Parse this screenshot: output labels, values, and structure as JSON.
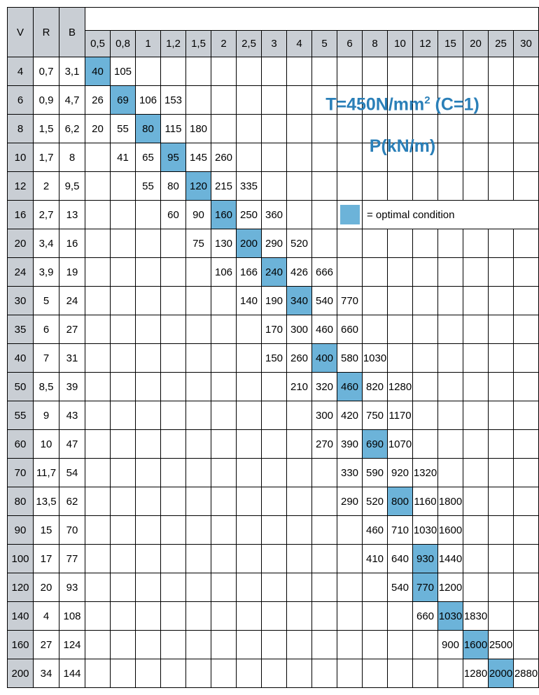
{
  "colors": {
    "header_bg": "#c9ced4",
    "optimal_bg": "#6cb3d9",
    "formula_text": "#2a7fb8",
    "border": "#000000",
    "background": "#ffffff"
  },
  "formula": {
    "line1_prefix": "T=450N/mm",
    "line1_sup": "2",
    "line1_suffix": " (C=1)",
    "line2": "P(kN/m)"
  },
  "legend": "= optimal condition",
  "headers": {
    "col1": "V",
    "col2": "R",
    "col3": "B",
    "data_cols": [
      "0,5",
      "0,8",
      "1",
      "1,2",
      "1,5",
      "2",
      "2,5",
      "3",
      "4",
      "5",
      "6",
      "8",
      "10",
      "12",
      "15",
      "20",
      "25",
      "30"
    ]
  },
  "rows": [
    {
      "V": "4",
      "R": "0,7",
      "B": "3,1",
      "cells": [
        {
          "v": "40",
          "o": 1
        },
        {
          "v": "105"
        },
        {},
        {},
        {},
        {},
        {},
        {},
        {},
        {},
        {},
        {},
        {},
        {},
        {},
        {},
        {},
        {}
      ]
    },
    {
      "V": "6",
      "R": "0,9",
      "B": "4,7",
      "cells": [
        {
          "v": "26"
        },
        {
          "v": "69",
          "o": 1
        },
        {
          "v": "106"
        },
        {
          "v": "153"
        },
        {},
        {},
        {},
        {},
        {},
        {},
        {},
        {},
        {},
        {},
        {},
        {},
        {},
        {}
      ]
    },
    {
      "V": "8",
      "R": "1,5",
      "B": "6,2",
      "cells": [
        {
          "v": "20"
        },
        {
          "v": "55"
        },
        {
          "v": "80",
          "o": 1
        },
        {
          "v": "115"
        },
        {
          "v": "180"
        },
        {},
        {},
        {},
        {},
        {},
        {},
        {},
        {},
        {},
        {},
        {},
        {},
        {}
      ]
    },
    {
      "V": "10",
      "R": "1,7",
      "B": "8",
      "cells": [
        {},
        {
          "v": "41"
        },
        {
          "v": "65"
        },
        {
          "v": "95",
          "o": 1
        },
        {
          "v": "145"
        },
        {
          "v": "260"
        },
        {},
        {},
        {},
        {},
        {},
        {},
        {},
        {},
        {},
        {},
        {},
        {}
      ]
    },
    {
      "V": "12",
      "R": "2",
      "B": "9,5",
      "cells": [
        {},
        {},
        {
          "v": "55"
        },
        {
          "v": "80"
        },
        {
          "v": "120",
          "o": 1
        },
        {
          "v": "215"
        },
        {
          "v": "335"
        },
        {},
        {},
        {},
        {},
        {},
        {},
        {},
        {},
        {},
        {},
        {}
      ]
    },
    {
      "V": "16",
      "R": "2,7",
      "B": "13",
      "cells": [
        {},
        {},
        {},
        {
          "v": "60"
        },
        {
          "v": "90"
        },
        {
          "v": "160",
          "o": 1
        },
        {
          "v": "250"
        },
        {
          "v": "360"
        },
        {},
        {},
        {},
        {},
        {},
        {},
        {},
        {},
        {},
        {}
      ]
    },
    {
      "V": "20",
      "R": "3,4",
      "B": "16",
      "cells": [
        {},
        {},
        {},
        {},
        {
          "v": "75"
        },
        {
          "v": "130"
        },
        {
          "v": "200",
          "o": 1
        },
        {
          "v": "290"
        },
        {
          "v": "520"
        },
        {},
        {},
        {},
        {},
        {},
        {},
        {},
        {},
        {}
      ]
    },
    {
      "V": "24",
      "R": "3,9",
      "B": "19",
      "cells": [
        {},
        {},
        {},
        {},
        {},
        {
          "v": "106"
        },
        {
          "v": "166"
        },
        {
          "v": "240",
          "o": 1
        },
        {
          "v": "426"
        },
        {
          "v": "666"
        },
        {},
        {},
        {},
        {},
        {},
        {},
        {},
        {}
      ]
    },
    {
      "V": "30",
      "R": "5",
      "B": "24",
      "cells": [
        {},
        {},
        {},
        {},
        {},
        {},
        {
          "v": "140"
        },
        {
          "v": "190"
        },
        {
          "v": "340",
          "o": 1
        },
        {
          "v": "540"
        },
        {
          "v": "770"
        },
        {},
        {},
        {},
        {},
        {},
        {},
        {}
      ]
    },
    {
      "V": "35",
      "R": "6",
      "B": "27",
      "cells": [
        {},
        {},
        {},
        {},
        {},
        {},
        {},
        {
          "v": "170"
        },
        {
          "v": "300"
        },
        {
          "v": "460"
        },
        {
          "v": "660"
        },
        {},
        {},
        {},
        {},
        {},
        {},
        {}
      ]
    },
    {
      "V": "40",
      "R": "7",
      "B": "31",
      "cells": [
        {},
        {},
        {},
        {},
        {},
        {},
        {},
        {
          "v": "150"
        },
        {
          "v": "260"
        },
        {
          "v": "400",
          "o": 1
        },
        {
          "v": "580"
        },
        {
          "v": "1030"
        },
        {},
        {},
        {},
        {},
        {},
        {}
      ]
    },
    {
      "V": "50",
      "R": "8,5",
      "B": "39",
      "cells": [
        {},
        {},
        {},
        {},
        {},
        {},
        {},
        {},
        {
          "v": "210"
        },
        {
          "v": "320"
        },
        {
          "v": "460",
          "o": 1
        },
        {
          "v": "820"
        },
        {
          "v": "1280"
        },
        {},
        {},
        {},
        {},
        {}
      ]
    },
    {
      "V": "55",
      "R": "9",
      "B": "43",
      "cells": [
        {},
        {},
        {},
        {},
        {},
        {},
        {},
        {},
        {},
        {
          "v": "300"
        },
        {
          "v": "420"
        },
        {
          "v": "750"
        },
        {
          "v": "1170"
        },
        {},
        {},
        {},
        {},
        {}
      ]
    },
    {
      "V": "60",
      "R": "10",
      "B": "47",
      "cells": [
        {},
        {},
        {},
        {},
        {},
        {},
        {},
        {},
        {},
        {
          "v": "270"
        },
        {
          "v": "390"
        },
        {
          "v": "690",
          "o": 1
        },
        {
          "v": "1070"
        },
        {},
        {},
        {},
        {},
        {}
      ]
    },
    {
      "V": "70",
      "R": "11,7",
      "B": "54",
      "cells": [
        {},
        {},
        {},
        {},
        {},
        {},
        {},
        {},
        {},
        {},
        {
          "v": "330"
        },
        {
          "v": "590"
        },
        {
          "v": "920"
        },
        {
          "v": "1320"
        },
        {},
        {},
        {},
        {}
      ]
    },
    {
      "V": "80",
      "R": "13,5",
      "B": "62",
      "cells": [
        {},
        {},
        {},
        {},
        {},
        {},
        {},
        {},
        {},
        {},
        {
          "v": "290"
        },
        {
          "v": "520"
        },
        {
          "v": "800",
          "o": 1
        },
        {
          "v": "1160"
        },
        {
          "v": "1800"
        },
        {},
        {},
        {}
      ]
    },
    {
      "V": "90",
      "R": "15",
      "B": "70",
      "cells": [
        {},
        {},
        {},
        {},
        {},
        {},
        {},
        {},
        {},
        {},
        {},
        {
          "v": "460"
        },
        {
          "v": "710"
        },
        {
          "v": "1030"
        },
        {
          "v": "1600"
        },
        {},
        {},
        {}
      ]
    },
    {
      "V": "100",
      "R": "17",
      "B": "77",
      "cells": [
        {},
        {},
        {},
        {},
        {},
        {},
        {},
        {},
        {},
        {},
        {},
        {
          "v": "410"
        },
        {
          "v": "640"
        },
        {
          "v": "930",
          "o": 1
        },
        {
          "v": "1440"
        },
        {},
        {},
        {}
      ]
    },
    {
      "V": "120",
      "R": "20",
      "B": "93",
      "cells": [
        {},
        {},
        {},
        {},
        {},
        {},
        {},
        {},
        {},
        {},
        {},
        {},
        {
          "v": "540"
        },
        {
          "v": "770",
          "o": 1
        },
        {
          "v": "1200"
        },
        {},
        {},
        {}
      ]
    },
    {
      "V": "140",
      "R": "4",
      "B": "108",
      "cells": [
        {},
        {},
        {},
        {},
        {},
        {},
        {},
        {},
        {},
        {},
        {},
        {},
        {},
        {
          "v": "660"
        },
        {
          "v": "1030",
          "o": 1
        },
        {
          "v": "1830"
        },
        {},
        {}
      ]
    },
    {
      "V": "160",
      "R": "27",
      "B": "124",
      "cells": [
        {},
        {},
        {},
        {},
        {},
        {},
        {},
        {},
        {},
        {},
        {},
        {},
        {},
        {},
        {
          "v": "900"
        },
        {
          "v": "1600",
          "o": 1
        },
        {
          "v": "2500"
        },
        {}
      ]
    },
    {
      "V": "200",
      "R": "34",
      "B": "144",
      "cells": [
        {},
        {},
        {},
        {},
        {},
        {},
        {},
        {},
        {},
        {},
        {},
        {},
        {},
        {},
        {},
        {
          "v": "1280"
        },
        {
          "v": "2000",
          "o": 1
        },
        {
          "v": "2880"
        }
      ]
    }
  ]
}
